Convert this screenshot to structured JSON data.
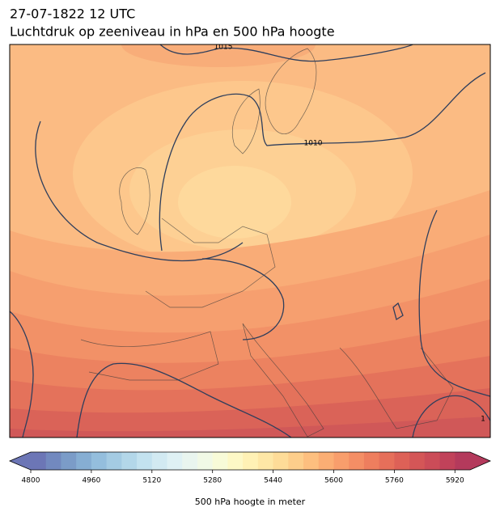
{
  "header": {
    "title": "27-07-1822 12 UTC",
    "subtitle": "Luchtdruk op zeeniveau in hPa en 500 hPa hoogte"
  },
  "map": {
    "contour_labels": [
      "1015",
      "1010",
      "1"
    ]
  },
  "chart_data": {
    "type": "colorbar",
    "label": "500 hPa hoogte in meter",
    "lim": [
      4800,
      5960
    ],
    "ticks": [
      4800,
      4960,
      5120,
      5280,
      5440,
      5600,
      5760,
      5920
    ],
    "extend": "both",
    "colors": [
      "#6c76b6",
      "#7289bf",
      "#7b9cc8",
      "#86aed3",
      "#94bedd",
      "#a4cbe3",
      "#b3d7e9",
      "#c3e2ef",
      "#d2eaf2",
      "#dff1f4",
      "#e9f5ef",
      "#f1f9e6",
      "#f8fbd8",
      "#fdf8c6",
      "#fff1b5",
      "#fee7a6",
      "#fedc98",
      "#fdce8b",
      "#fdbf7f",
      "#fbae74",
      "#f89e6c",
      "#f48e65",
      "#ee7e5e",
      "#e66f5a",
      "#dd6157",
      "#d45657",
      "#cb4c58",
      "#c1425a",
      "#b43a5c"
    ]
  }
}
